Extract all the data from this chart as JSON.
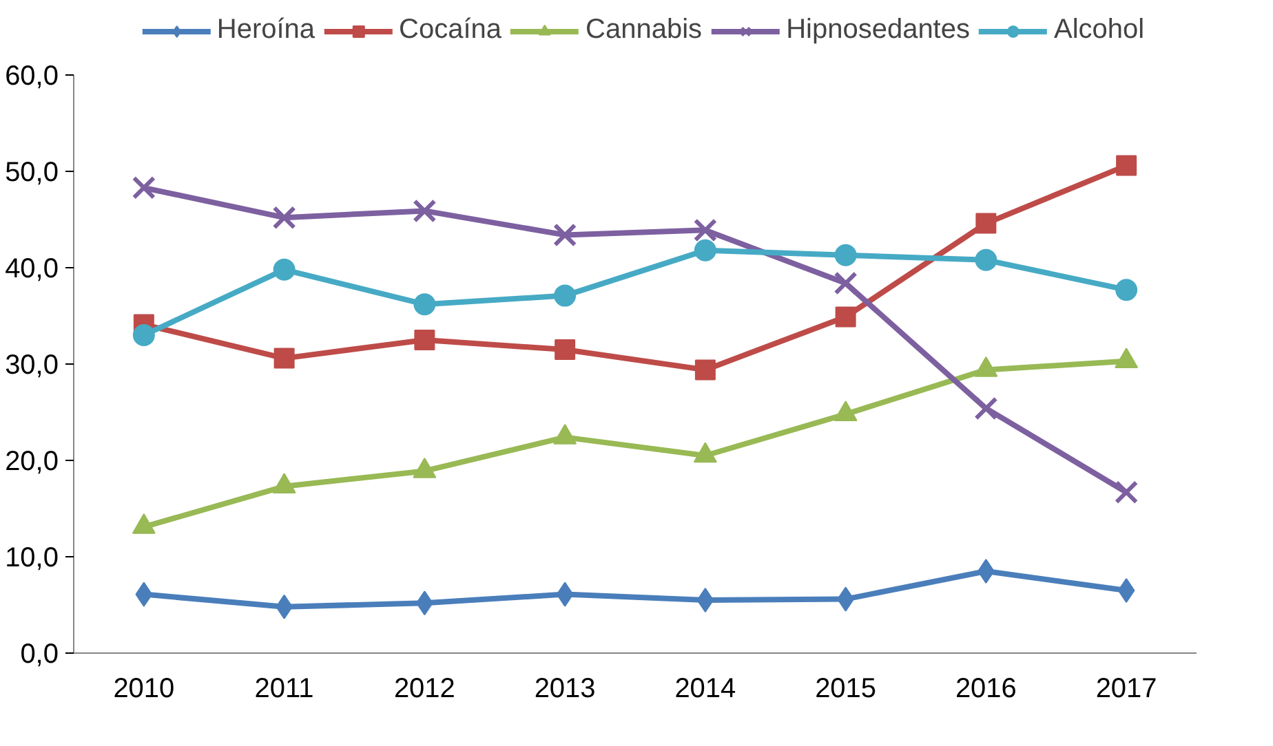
{
  "chart_data": {
    "type": "line",
    "categories": [
      "2010",
      "2011",
      "2012",
      "2013",
      "2014",
      "2015",
      "2016",
      "2017"
    ],
    "ylim": [
      0,
      60
    ],
    "yticks": [
      {
        "value": 0,
        "label": "0,0"
      },
      {
        "value": 10,
        "label": "10,0"
      },
      {
        "value": 20,
        "label": "20,0"
      },
      {
        "value": 30,
        "label": "30,0"
      },
      {
        "value": 40,
        "label": "40,0"
      },
      {
        "value": 50,
        "label": "50,0"
      },
      {
        "value": 60,
        "label": "60,0"
      }
    ],
    "grid": false,
    "legend": "top",
    "line_style": "solid",
    "series": [
      {
        "name": "Heroína",
        "color": "#4a7ebb",
        "marker": "diamond",
        "values": [
          6.1,
          4.8,
          5.2,
          6.1,
          5.5,
          5.6,
          8.5,
          6.5
        ]
      },
      {
        "name": "Cocaína",
        "color": "#be4b48",
        "marker": "square",
        "values": [
          34.1,
          30.6,
          32.5,
          31.5,
          29.4,
          34.9,
          44.6,
          50.6
        ]
      },
      {
        "name": "Cannabis",
        "color": "#98b954",
        "marker": "triangle",
        "values": [
          13.1,
          17.3,
          18.9,
          22.4,
          20.5,
          24.8,
          29.4,
          30.3
        ]
      },
      {
        "name": "Hipnosedantes",
        "color": "#7d60a0",
        "marker": "cross",
        "values": [
          48.3,
          45.2,
          45.9,
          43.4,
          43.9,
          38.4,
          25.4,
          16.7
        ]
      },
      {
        "name": "Alcohol",
        "color": "#46aac5",
        "marker": "circle",
        "values": [
          33.0,
          39.8,
          36.2,
          37.1,
          41.8,
          41.3,
          40.8,
          37.7
        ]
      }
    ]
  }
}
